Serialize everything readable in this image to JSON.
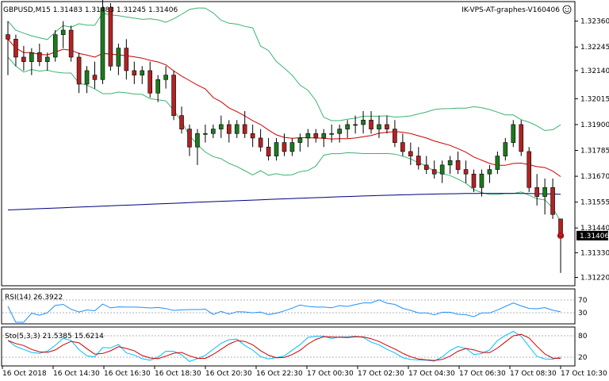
{
  "header": {
    "symbol_line": "GBPUSD,M15  1.31483 1.31483 1.31245 1.31406",
    "watermark": "IK-VPS-AT-graphes-V160406"
  },
  "chart_data": [
    {
      "type": "candlestick",
      "panel": "price",
      "ylim": [
        1.3119,
        1.3244
      ],
      "y_ticks": [
        "1.32360",
        "1.32245",
        "1.32140",
        "1.32015",
        "1.31900",
        "1.31785",
        "1.31670",
        "1.31555",
        "1.31440",
        "1.31330",
        "1.31220"
      ],
      "current_price": "1.31406",
      "x_tick_labels": [
        "16 Oct 2018",
        "16 Oct 14:30",
        "16 Oct 16:30",
        "16 Oct 18:30",
        "16 Oct 20:30",
        "16 Oct 22:30",
        "17 Oct 00:30",
        "17 Oct 02:30",
        "17 Oct 04:30",
        "17 Oct 06:30",
        "17 Oct 08:30",
        "17 Oct 10:30"
      ],
      "candles": [
        [
          1.323,
          1.3236,
          1.3212,
          1.3228
        ],
        [
          1.3228,
          1.323,
          1.3216,
          1.322
        ],
        [
          1.322,
          1.3225,
          1.3214,
          1.3218
        ],
        [
          1.3218,
          1.3224,
          1.3212,
          1.3222
        ],
        [
          1.3222,
          1.3226,
          1.3216,
          1.3218
        ],
        [
          1.3218,
          1.3222,
          1.3214,
          1.322
        ],
        [
          1.322,
          1.3232,
          1.3218,
          1.323
        ],
        [
          1.323,
          1.3236,
          1.3224,
          1.3232
        ],
        [
          1.3232,
          1.3234,
          1.3218,
          1.322
        ],
        [
          1.322,
          1.3222,
          1.3204,
          1.3208
        ],
        [
          1.3208,
          1.3216,
          1.3204,
          1.3214
        ],
        [
          1.3212,
          1.3218,
          1.3206,
          1.321
        ],
        [
          1.321,
          1.3246,
          1.3208,
          1.3242
        ],
        [
          1.3242,
          1.3244,
          1.3214,
          1.3216
        ],
        [
          1.3216,
          1.3226,
          1.3212,
          1.3224
        ],
        [
          1.3224,
          1.3228,
          1.321,
          1.3214
        ],
        [
          1.3214,
          1.3218,
          1.3208,
          1.3212
        ],
        [
          1.3212,
          1.3216,
          1.3208,
          1.3214
        ],
        [
          1.3214,
          1.3218,
          1.3202,
          1.3204
        ],
        [
          1.3204,
          1.3212,
          1.32,
          1.321
        ],
        [
          1.321,
          1.3216,
          1.3206,
          1.3212
        ],
        [
          1.3212,
          1.3214,
          1.3192,
          1.3194
        ],
        [
          1.3194,
          1.3198,
          1.3186,
          1.3188
        ],
        [
          1.3188,
          1.319,
          1.3176,
          1.318
        ],
        [
          1.318,
          1.3188,
          1.3172,
          1.3186
        ],
        [
          1.3186,
          1.319,
          1.3182,
          1.3186
        ],
        [
          1.3186,
          1.319,
          1.3184,
          1.3188
        ],
        [
          1.3188,
          1.3194,
          1.3184,
          1.319
        ],
        [
          1.319,
          1.3192,
          1.3182,
          1.3186
        ],
        [
          1.3186,
          1.3192,
          1.3184,
          1.319
        ],
        [
          1.319,
          1.3196,
          1.3184,
          1.3186
        ],
        [
          1.3186,
          1.319,
          1.318,
          1.3184
        ],
        [
          1.3184,
          1.3188,
          1.3178,
          1.318
        ],
        [
          1.318,
          1.3184,
          1.3174,
          1.3176
        ],
        [
          1.3176,
          1.3184,
          1.3174,
          1.3182
        ],
        [
          1.3182,
          1.3186,
          1.3176,
          1.3178
        ],
        [
          1.3178,
          1.3184,
          1.3176,
          1.3182
        ],
        [
          1.3182,
          1.3186,
          1.3178,
          1.3184
        ],
        [
          1.3184,
          1.3188,
          1.318,
          1.3186
        ],
        [
          1.3186,
          1.3188,
          1.3182,
          1.3184
        ],
        [
          1.3184,
          1.3188,
          1.318,
          1.3186
        ],
        [
          1.3186,
          1.319,
          1.3182,
          1.3186
        ],
        [
          1.3186,
          1.319,
          1.3182,
          1.3188
        ],
        [
          1.3188,
          1.3192,
          1.3184,
          1.319
        ],
        [
          1.319,
          1.3194,
          1.3186,
          1.319
        ],
        [
          1.319,
          1.3196,
          1.3186,
          1.3192
        ],
        [
          1.3192,
          1.3196,
          1.3186,
          1.3188
        ],
        [
          1.3188,
          1.3194,
          1.3184,
          1.319
        ],
        [
          1.319,
          1.3194,
          1.3186,
          1.3188
        ],
        [
          1.3188,
          1.3192,
          1.318,
          1.3182
        ],
        [
          1.3182,
          1.3186,
          1.3176,
          1.3178
        ],
        [
          1.3178,
          1.3182,
          1.3172,
          1.3176
        ],
        [
          1.3176,
          1.318,
          1.317,
          1.3172
        ],
        [
          1.3172,
          1.3176,
          1.3168,
          1.317
        ],
        [
          1.317,
          1.3174,
          1.3166,
          1.3168
        ],
        [
          1.3168,
          1.3174,
          1.3164,
          1.3172
        ],
        [
          1.3172,
          1.3176,
          1.3168,
          1.3174
        ],
        [
          1.3174,
          1.3178,
          1.3168,
          1.317
        ],
        [
          1.317,
          1.3174,
          1.3164,
          1.3168
        ],
        [
          1.3168,
          1.317,
          1.316,
          1.3162
        ],
        [
          1.3162,
          1.317,
          1.3158,
          1.3168
        ],
        [
          1.3168,
          1.3172,
          1.3164,
          1.317
        ],
        [
          1.317,
          1.3178,
          1.3168,
          1.3176
        ],
        [
          1.3176,
          1.3184,
          1.3174,
          1.3182
        ],
        [
          1.3182,
          1.3192,
          1.318,
          1.319
        ],
        [
          1.319,
          1.3192,
          1.3176,
          1.3178
        ],
        [
          1.3178,
          1.318,
          1.316,
          1.3162
        ],
        [
          1.3162,
          1.3168,
          1.3154,
          1.3158
        ],
        [
          1.3158,
          1.3166,
          1.315,
          1.3162
        ],
        [
          1.3162,
          1.3166,
          1.3148,
          1.315
        ],
        [
          1.3148,
          1.3148,
          1.3124,
          1.314
        ]
      ]
    },
    {
      "type": "line",
      "panel": "rsi",
      "label": "RSI(14) 26.3922",
      "levels": [
        "70",
        "30"
      ],
      "ylim": [
        0,
        100
      ]
    },
    {
      "type": "line",
      "panel": "stochastic",
      "label": "Sto(5,3,3) 21.5385 15.6214",
      "levels": [
        "80",
        "20"
      ],
      "ylim": [
        0,
        100
      ]
    }
  ],
  "colors": {
    "bull": "#1c7a1c",
    "bear": "#b22222",
    "bollinger": "#3cb371",
    "ma_fast": "#cc0000",
    "ma_slow": "#000080",
    "rsi": "#1e90ff",
    "sto_main": "#00bfff",
    "sto_signal": "#cc0000"
  }
}
